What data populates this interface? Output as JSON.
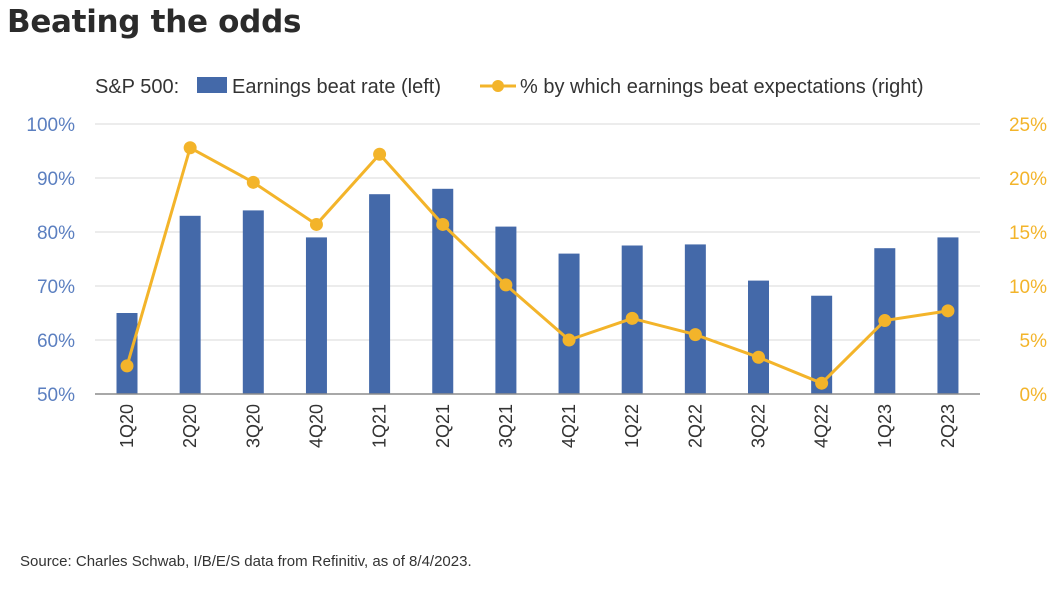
{
  "page": {
    "title": "Beating the odds",
    "source": "Source: Charles Schwab, I/B/E/S data from Refinitiv, as of 8/4/2023."
  },
  "chart_data": {
    "type": "bar",
    "legend_prefix": "S&P 500:",
    "legend_position": "top",
    "categories": [
      "1Q20",
      "2Q20",
      "3Q20",
      "4Q20",
      "1Q21",
      "2Q21",
      "3Q21",
      "4Q21",
      "1Q22",
      "2Q22",
      "3Q22",
      "4Q22",
      "1Q23",
      "2Q23"
    ],
    "series": [
      {
        "name": "Earnings beat rate (left)",
        "type": "bar",
        "axis": "left",
        "color": "#4469a9",
        "values": [
          65,
          83,
          84,
          79,
          87,
          88,
          81,
          76,
          77.5,
          77.7,
          71,
          68.2,
          77,
          79
        ]
      },
      {
        "name": "% by which earnings beat expectations (right)",
        "type": "line",
        "axis": "right",
        "color": "#f3b42a",
        "values": [
          2.6,
          22.8,
          19.6,
          15.7,
          22.2,
          15.7,
          10.1,
          5.0,
          7.0,
          5.5,
          3.4,
          1.0,
          6.8,
          7.7
        ]
      }
    ],
    "y_left": {
      "range": [
        50,
        100
      ],
      "ticks": [
        "50%",
        "60%",
        "70%",
        "80%",
        "90%",
        "100%"
      ],
      "color": "#5b7fc0"
    },
    "y_right": {
      "range": [
        0,
        25
      ],
      "ticks": [
        "0%",
        "5%",
        "10%",
        "15%",
        "20%",
        "25%"
      ],
      "color": "#f3b42a"
    },
    "grid": true
  }
}
